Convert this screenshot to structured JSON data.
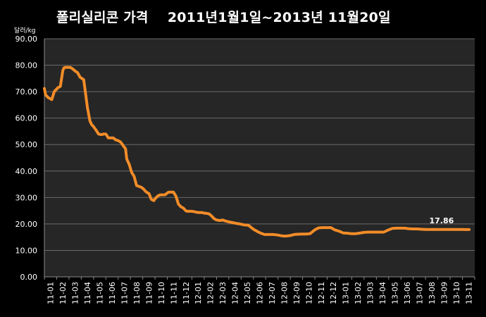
{
  "chart_data": {
    "type": "line",
    "title": "폴리실리콘 가격    2011년1월1일~2013년 11월20일",
    "ylabel": "달러/kg",
    "ylim": [
      0,
      90
    ],
    "yticks": [
      "0.00",
      "10.00",
      "20.00",
      "30.00",
      "40.00",
      "50.00",
      "60.00",
      "70.00",
      "80.00",
      "90.00"
    ],
    "categories": [
      "11-01",
      "11-02",
      "11-03",
      "11-04",
      "11-05",
      "11-06",
      "11-07",
      "11-08",
      "11-09",
      "11-10",
      "11-11",
      "11-12",
      "12-01",
      "12-02",
      "12-03",
      "12-04",
      "12-05",
      "12-06",
      "12-07",
      "12-08",
      "12-09",
      "12-10",
      "12-11",
      "12-12",
      "13-01",
      "13-02",
      "13-03",
      "13-04",
      "13-05",
      "13-06",
      "13-07",
      "13-08",
      "13-09",
      "13-10",
      "13-11"
    ],
    "grid": true,
    "series": [
      {
        "color": "#F28C28",
        "x": [
          0,
          0.1,
          0.3,
          0.6,
          0.8,
          1.1,
          1.3,
          1.5,
          1.6,
          1.7,
          1.9,
          2.1,
          2.3,
          2.5,
          2.7,
          2.9,
          3.2,
          3.5,
          3.7,
          3.85,
          4.0,
          4.2,
          4.4,
          4.6,
          4.7,
          4.8,
          5.0,
          5.2,
          5.4,
          5.6,
          5.8,
          6.0,
          6.2,
          6.5,
          6.6,
          6.7,
          6.9,
          7.1,
          7.3,
          7.5,
          7.8,
          8.0,
          8.1,
          8.3,
          8.5,
          8.7,
          8.9,
          9.0,
          9.2,
          9.4,
          9.6,
          9.8,
          10.1,
          10.3,
          10.5,
          10.7,
          10.9,
          11.1,
          11.3,
          11.5,
          11.6,
          11.8,
          12.0,
          12.2,
          12.4,
          12.6,
          12.8,
          13.0,
          13.2,
          13.4,
          13.6,
          13.8,
          14.0,
          14.3,
          14.5,
          14.8,
          15.0,
          15.3,
          15.6,
          15.9,
          16.3,
          16.6,
          17.0,
          17.3,
          17.6,
          17.9,
          18.3,
          18.6,
          19.0,
          19.3,
          19.6,
          20.0,
          20.3,
          20.6,
          21.0,
          21.3,
          21.6,
          22.0,
          22.3,
          22.6,
          23.0,
          23.3,
          23.6,
          24.0,
          24.3,
          24.6,
          25.0,
          25.3,
          25.6,
          26.0,
          26.3,
          26.6,
          27.0,
          27.3,
          27.6,
          28.0,
          28.3,
          28.6,
          29.0,
          29.3,
          29.6,
          30.0,
          30.3,
          30.6,
          31.0,
          31.3,
          31.6,
          32.0,
          32.3,
          32.6,
          33.0,
          33.3,
          33.6,
          34.0,
          34.3,
          34.55
        ],
        "y": [
          71.2,
          68.8,
          67.8,
          67.0,
          70.0,
          71.5,
          72.0,
          78.0,
          79.0,
          79.2,
          79.2,
          79.2,
          78.6,
          77.8,
          77.2,
          75.5,
          74.5,
          64.0,
          59.0,
          57.5,
          56.8,
          55.5,
          54.0,
          53.8,
          53.8,
          54.0,
          54.0,
          52.5,
          52.5,
          52.5,
          51.8,
          51.5,
          51.0,
          49.0,
          48.5,
          44.5,
          42.5,
          39.5,
          38.0,
          34.5,
          34.0,
          33.5,
          33.0,
          32.0,
          31.5,
          29.3,
          28.8,
          29.5,
          30.5,
          31.0,
          31.0,
          31.0,
          32.0,
          32.0,
          32.0,
          30.5,
          27.5,
          26.5,
          26.0,
          25.0,
          24.8,
          24.8,
          24.8,
          24.6,
          24.4,
          24.3,
          24.3,
          24.1,
          24.0,
          23.8,
          23.0,
          22.0,
          21.5,
          21.3,
          21.5,
          21.0,
          20.8,
          20.5,
          20.2,
          20.0,
          19.6,
          19.5,
          18.0,
          17.2,
          16.5,
          16.0,
          16.0,
          16.0,
          15.8,
          15.5,
          15.4,
          15.6,
          16.0,
          16.1,
          16.2,
          16.2,
          16.3,
          17.8,
          18.5,
          18.6,
          18.6,
          18.6,
          17.8,
          17.2,
          16.6,
          16.5,
          16.3,
          16.3,
          16.5,
          16.8,
          16.9,
          16.9,
          16.9,
          16.9,
          16.9,
          17.8,
          18.3,
          18.4,
          18.4,
          18.4,
          18.2,
          18.1,
          18.1,
          18.0,
          17.9,
          17.9,
          17.9,
          17.9,
          17.9,
          17.9,
          17.9,
          17.9,
          17.9,
          17.9,
          17.86,
          17.86
        ]
      }
    ],
    "annotation": {
      "text": "17.86",
      "x": 32.3,
      "y": 17.86
    }
  }
}
